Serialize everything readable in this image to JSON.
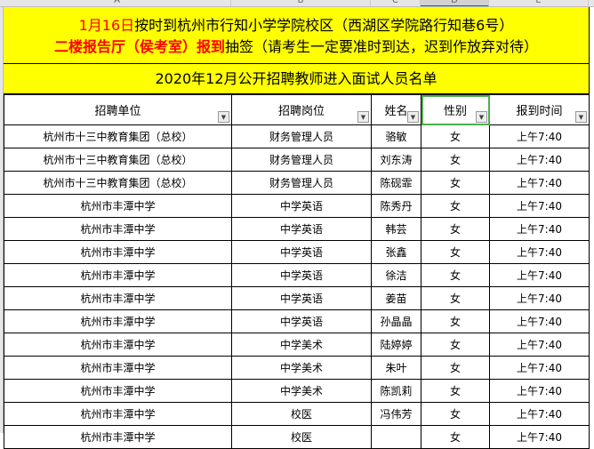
{
  "columns": [
    "A",
    "B",
    "C",
    "D",
    "E"
  ],
  "banner": {
    "line1_red": "1月16日",
    "line1_rest": "按时到杭州市行知小学学院校区（西湖区学院路行知巷6号）",
    "line2_red": "二楼报告厅（侯考室）报到",
    "line2_rest": "抽签（请考生一定要准时到达，迟到作放弃对待）"
  },
  "title": "2020年12月公开招聘教师进入面试人员名单",
  "headers": [
    "招聘单位",
    "招聘岗位",
    "姓名",
    "性别",
    "报到时间"
  ],
  "rows": [
    [
      "杭州市十三中教育集团（总校）",
      "财务管理人员",
      "骆敏",
      "女",
      "上午7:40"
    ],
    [
      "杭州市十三中教育集团（总校）",
      "财务管理人员",
      "刘东涛",
      "女",
      "上午7:40"
    ],
    [
      "杭州市十三中教育集团（总校）",
      "财务管理人员",
      "陈砚霏",
      "女",
      "上午7:40"
    ],
    [
      "杭州市丰潭中学",
      "中学英语",
      "陈秀丹",
      "女",
      "上午7:40"
    ],
    [
      "杭州市丰潭中学",
      "中学英语",
      "韩芸",
      "女",
      "上午7:40"
    ],
    [
      "杭州市丰潭中学",
      "中学英语",
      "张鑫",
      "女",
      "上午7:40"
    ],
    [
      "杭州市丰潭中学",
      "中学英语",
      "徐洁",
      "女",
      "上午7:40"
    ],
    [
      "杭州市丰潭中学",
      "中学英语",
      "姜苗",
      "女",
      "上午7:40"
    ],
    [
      "杭州市丰潭中学",
      "中学英语",
      "孙晶晶",
      "女",
      "上午7:40"
    ],
    [
      "杭州市丰潭中学",
      "中学美术",
      "陆婷婷",
      "女",
      "上午7:40"
    ],
    [
      "杭州市丰潭中学",
      "中学美术",
      "朱叶",
      "女",
      "上午7:40"
    ],
    [
      "杭州市丰潭中学",
      "中学美术",
      "陈凯莉",
      "女",
      "上午7:40"
    ],
    [
      "杭州市丰潭中学",
      "校医",
      "冯伟芳",
      "女",
      "上午7:40"
    ],
    [
      "杭州市丰潭中学",
      "校医",
      "",
      "女",
      "上午7:40"
    ]
  ],
  "colors": {
    "banner_bg": "#ffff00",
    "accent_red": "#ff0000",
    "selection": "#4caf50"
  }
}
